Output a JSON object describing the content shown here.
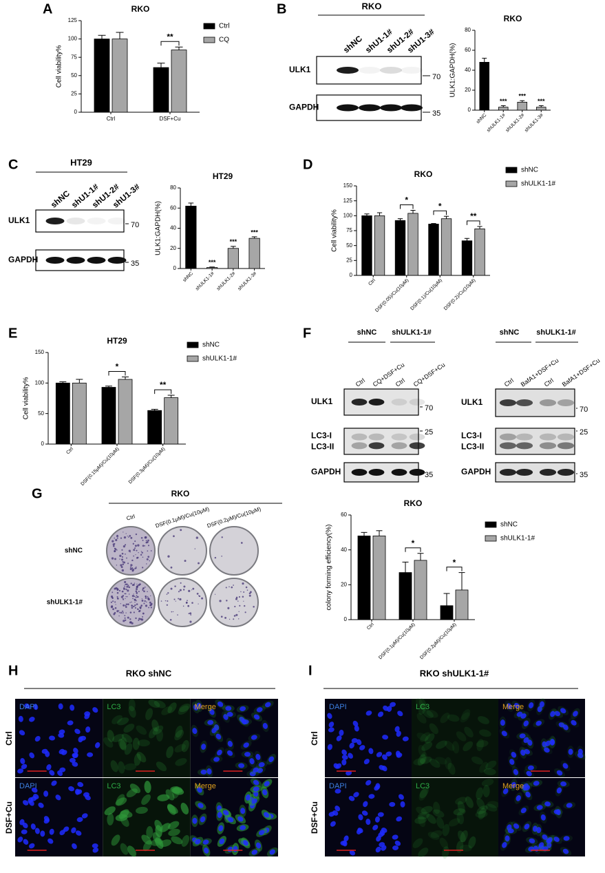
{
  "chart_data": [
    {
      "panel": "A",
      "type": "bar",
      "title": "RKO",
      "y_label": "Cell viability%",
      "categories": [
        "Ctrl",
        "DSF+Cu"
      ],
      "series": [
        {
          "name": "Ctrl",
          "color": "#000000",
          "values": [
            100,
            61
          ],
          "errors": [
            5,
            6
          ]
        },
        {
          "name": "CQ",
          "color": "#a6a6a6",
          "values": [
            100,
            85
          ],
          "errors": [
            9,
            4
          ]
        }
      ],
      "significance": [
        null,
        "**"
      ],
      "ylim": [
        0,
        125
      ],
      "yticks": [
        0,
        25,
        50,
        75,
        100,
        125
      ],
      "legend": "right"
    },
    {
      "type": "bar",
      "title": "RKO",
      "y_label": "ULK1:GAPDH(%)",
      "categories": [
        "shNC",
        "shULK1-1#",
        "shULK1-2#",
        "shULK1-3#"
      ],
      "values": [
        48,
        3,
        8,
        3
      ],
      "errors": [
        4,
        1.5,
        1.5,
        1.5
      ],
      "colors": [
        "#000000",
        "#a6a6a6",
        "#a6a6a6",
        "#a6a6a6"
      ],
      "significance": [
        null,
        "***",
        "***",
        "***"
      ],
      "ylim": [
        0,
        80
      ],
      "yticks": [
        0,
        20,
        40,
        60,
        80
      ]
    },
    {
      "type": "bar",
      "title": "HT29",
      "y_label": "ULK1:GAPDH(%)",
      "categories": [
        "shNC",
        "shULK1-1#",
        "shULK1-2#",
        "shULK1-3#"
      ],
      "values": [
        62,
        1,
        20,
        30
      ],
      "errors": [
        3,
        0.5,
        2,
        1.5
      ],
      "colors": [
        "#000000",
        "#a6a6a6",
        "#a6a6a6",
        "#a6a6a6"
      ],
      "significance": [
        null,
        "***",
        "***",
        "***"
      ],
      "ylim": [
        0,
        80
      ],
      "yticks": [
        0,
        20,
        40,
        60,
        80
      ]
    },
    {
      "panel": "D",
      "type": "bar",
      "title": "RKO",
      "y_label": "Cell viability%",
      "categories": [
        "Ctrl",
        "DSF(0.05)/Cu(10μM)",
        "DSF(0.1)/Cu(10μM)",
        "DSF(0.2)/Cu(10μM)"
      ],
      "series": [
        {
          "name": "shNC",
          "color": "#000000",
          "values": [
            100,
            92,
            86,
            58
          ],
          "errors": [
            3,
            3,
            1,
            4
          ]
        },
        {
          "name": "shULK1-1#",
          "color": "#a6a6a6",
          "values": [
            100,
            104,
            95,
            78
          ],
          "errors": [
            5,
            5,
            4,
            4
          ]
        }
      ],
      "significance": [
        null,
        "*",
        "*",
        "**"
      ],
      "ylim": [
        0,
        150
      ],
      "yticks": [
        0,
        25,
        50,
        75,
        100,
        125,
        150
      ],
      "legend": "right"
    },
    {
      "panel": "E",
      "type": "bar",
      "title": "HT29",
      "y_label": "Cell viability%",
      "categories": [
        "Ctrl",
        "DSF(0.15μM)/Cu(10μM)",
        "DSF(0.3μM)/Cu(10μM)"
      ],
      "series": [
        {
          "name": "shNC",
          "color": "#000000",
          "values": [
            100,
            93,
            55
          ],
          "errors": [
            2,
            2,
            2
          ]
        },
        {
          "name": "shULK1-1#",
          "color": "#a6a6a6",
          "values": [
            100,
            106,
            76
          ],
          "errors": [
            6,
            4,
            4
          ]
        }
      ],
      "significance": [
        null,
        "*",
        "**"
      ],
      "ylim": [
        0,
        150
      ],
      "yticks": [
        0,
        50,
        100,
        150
      ],
      "legend": "right"
    },
    {
      "type": "bar",
      "title": "RKO",
      "y_label": "colony forming efficiency(%)",
      "categories": [
        "Ctrl",
        "DSF(0.1μM)/Cu(10μM)",
        "DSF(0.2μM)/Cu(10μM)"
      ],
      "series": [
        {
          "name": "shNC",
          "color": "#000000",
          "values": [
            48,
            27,
            8
          ],
          "errors": [
            2,
            6,
            7
          ]
        },
        {
          "name": "shULK1-1#",
          "color": "#a6a6a6",
          "values": [
            48,
            34,
            17
          ],
          "errors": [
            3,
            4,
            10
          ]
        }
      ],
      "significance": [
        null,
        "*",
        "*"
      ],
      "ylim": [
        0,
        60
      ],
      "yticks": [
        0,
        20,
        40,
        60
      ],
      "legend": "right"
    }
  ],
  "blots": [
    {
      "panel": "B",
      "header": "RKO",
      "lanes": [
        "shNC",
        "shU1-1#",
        "shU1-2#",
        "shU1-3#"
      ],
      "rows": [
        {
          "labels": [
            "ULK1"
          ],
          "marker": "70"
        },
        {
          "labels": [
            "GAPDH"
          ],
          "marker": "35"
        }
      ]
    },
    {
      "panel": "C",
      "header": "HT29",
      "lanes": [
        "shNC",
        "shU1-1#",
        "shU1-2#",
        "shU1-3#"
      ],
      "rows": [
        {
          "labels": [
            "ULK1"
          ],
          "marker": "70"
        },
        {
          "labels": [
            "GAPDH"
          ],
          "marker": "35"
        }
      ]
    },
    {
      "panel": "F",
      "groups": [
        "shNC",
        "shULK1-1#"
      ],
      "lanes": [
        "Ctrl",
        "CQ+DSF+Cu",
        "Ctrl",
        "CQ+DSF+Cu"
      ],
      "rows": [
        {
          "labels": [
            "ULK1"
          ],
          "marker": "70"
        },
        {
          "labels": [
            "LC3-I",
            "LC3-II"
          ],
          "marker": "25"
        },
        {
          "labels": [
            "GAPDH"
          ],
          "marker": "35"
        }
      ]
    },
    {
      "groups": [
        "shNC",
        "shULK1-1#"
      ],
      "lanes": [
        "Ctrl",
        "BafA1+DSF+Cu",
        "Ctrl",
        "BafA1+DSF+Cu"
      ],
      "rows": [
        {
          "labels": [
            "ULK1"
          ],
          "marker": "70"
        },
        {
          "labels": [
            "LC3-I",
            "LC3-II"
          ],
          "marker": "25"
        },
        {
          "labels": [
            "GAPDH"
          ],
          "marker": "35"
        }
      ]
    }
  ],
  "colony_plates": {
    "panel": "G",
    "header": "RKO",
    "columns": [
      "Ctrl",
      "DSF(0.1μM)/Cu(10μM)",
      "DSF(0.2μM)/Cu(10μM)"
    ],
    "rows": [
      "shNC",
      "shULK1-1#"
    ]
  },
  "immunofluorescence": [
    {
      "panel": "H",
      "title": "RKO shNC",
      "rows": [
        "Ctrl",
        "DSF+Cu"
      ],
      "channels": [
        "DAPI",
        "LC3",
        "Merge"
      ]
    },
    {
      "panel": "I",
      "title": "RKO shULK1-1#",
      "rows": [
        "Ctrl",
        "DSF+Cu"
      ],
      "channels": [
        "DAPI",
        "LC3",
        "Merge"
      ]
    }
  ]
}
